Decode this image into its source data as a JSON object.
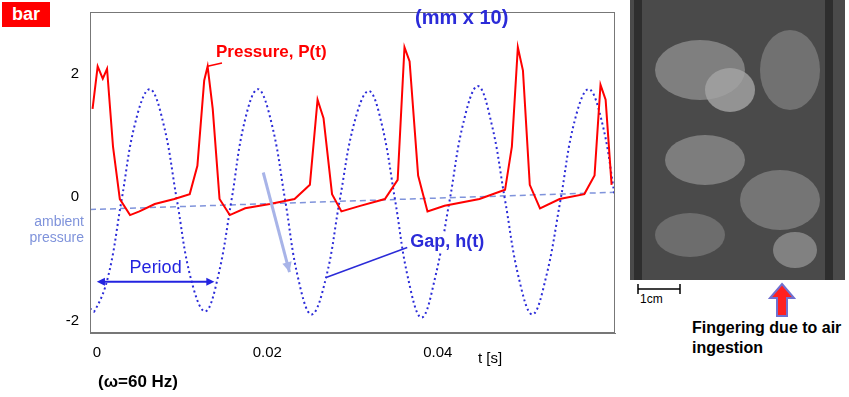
{
  "chart_data": {
    "type": "line",
    "ylabel": "bar",
    "xlabel": "t [s]",
    "caption": "(ω=60 Hz)",
    "xlim": [
      -0.0008,
      0.0608
    ],
    "xticks": [
      0,
      0.02,
      0.04
    ],
    "ylim": [
      -2.2,
      3.0
    ],
    "yticks": [
      -2,
      0,
      2
    ],
    "grid": false,
    "series": [
      {
        "name": "Pressure, P(t)",
        "color": "#ff0000",
        "line_style": "solid",
        "marker": "none",
        "x": [
          -0.0005,
          0.0001,
          0.0007,
          0.0012,
          0.0019,
          0.0027,
          0.0039,
          0.005,
          0.0068,
          0.0091,
          0.0109,
          0.0118,
          0.0126,
          0.013,
          0.0136,
          0.0144,
          0.0156,
          0.0174,
          0.0203,
          0.0232,
          0.025,
          0.0259,
          0.0266,
          0.0276,
          0.0287,
          0.0309,
          0.0338,
          0.0353,
          0.0361,
          0.0367,
          0.0377,
          0.0388,
          0.0408,
          0.0449,
          0.0479,
          0.0487,
          0.0494,
          0.05,
          0.0508,
          0.052,
          0.0543,
          0.0572,
          0.0584,
          0.0591,
          0.0597,
          0.0604
        ],
        "values": [
          1.43,
          2.12,
          1.92,
          2.08,
          0.82,
          -0.03,
          -0.29,
          -0.23,
          -0.11,
          -0.03,
          0.05,
          0.51,
          1.89,
          2.12,
          1.43,
          -0.03,
          -0.29,
          -0.18,
          -0.11,
          -0.03,
          0.2,
          1.58,
          1.28,
          0.05,
          -0.23,
          -0.14,
          -0.03,
          0.28,
          2.43,
          2.2,
          0.35,
          -0.23,
          -0.14,
          -0.03,
          0.12,
          0.82,
          2.43,
          2.05,
          0.2,
          -0.18,
          -0.03,
          0.05,
          0.35,
          1.82,
          1.58,
          0.2
        ]
      },
      {
        "name": "Gap, h(t)",
        "unit": "(mm x 10)",
        "color": "#2b2bd8",
        "line_style": "dotted",
        "marker": "none",
        "x": [
          -0.0008,
          -0.0003,
          0.0013,
          0.0029,
          0.0045,
          0.0062,
          0.0078,
          0.0094,
          0.011,
          0.0127,
          0.0142,
          0.0158,
          0.0173,
          0.0189,
          0.0205,
          0.0221,
          0.0236,
          0.0252,
          0.0269,
          0.0285,
          0.0302,
          0.0319,
          0.0334,
          0.035,
          0.0365,
          0.0381,
          0.0397,
          0.0414,
          0.043,
          0.0447,
          0.0463,
          0.0479,
          0.0495,
          0.0511,
          0.0527,
          0.0544,
          0.056,
          0.0577,
          0.0593,
          0.0608
        ],
        "values": [
          -1.8,
          -1.85,
          -1.3,
          -0.05,
          1.2,
          1.75,
          1.2,
          -0.05,
          -1.3,
          -1.85,
          -1.3,
          -0.05,
          1.2,
          1.75,
          1.2,
          -0.05,
          -1.3,
          -1.9,
          -1.3,
          -0.05,
          1.2,
          1.72,
          1.2,
          -0.05,
          -1.3,
          -1.95,
          -1.3,
          -0.05,
          1.2,
          1.8,
          1.2,
          -0.05,
          -1.3,
          -1.9,
          -1.3,
          -0.05,
          1.2,
          1.75,
          1.2,
          0.0
        ]
      },
      {
        "name": "ambient pressure",
        "color": "#7f93db",
        "line_style": "dashed",
        "marker": "none",
        "x": [
          -0.0008,
          0.0608
        ],
        "values": [
          -0.2,
          0.08
        ]
      }
    ],
    "period": {
      "label": "Period",
      "x": [
        0,
        0.0138
      ],
      "y": -1.37
    }
  },
  "photo": {
    "scale_label": "1cm",
    "caption": "Fingering due to air ingestion"
  }
}
